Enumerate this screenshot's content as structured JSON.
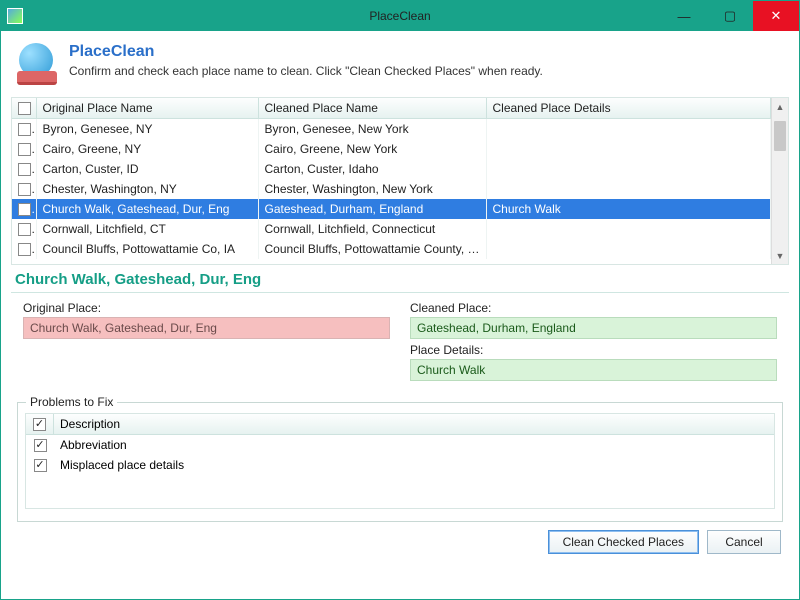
{
  "window": {
    "title": "PlaceClean",
    "controls": {
      "min": "—",
      "max": "▢",
      "close": "✕"
    }
  },
  "header": {
    "title": "PlaceClean",
    "subtitle": "Confirm and check each place name to clean. Click \"Clean Checked Places\" when ready."
  },
  "table": {
    "columns": {
      "original": "Original Place Name",
      "cleaned": "Cleaned Place Name",
      "details": "Cleaned Place Details"
    },
    "selected_index": 4,
    "rows": [
      {
        "original": "Byron, Genesee, NY",
        "cleaned": "Byron, Genesee, New York",
        "details": ""
      },
      {
        "original": "Cairo, Greene, NY",
        "cleaned": "Cairo, Greene, New York",
        "details": ""
      },
      {
        "original": "Carton, Custer, ID",
        "cleaned": "Carton, Custer, Idaho",
        "details": ""
      },
      {
        "original": "Chester, Washington, NY",
        "cleaned": "Chester, Washington, New York",
        "details": ""
      },
      {
        "original": "Church Walk, Gateshead, Dur, Eng",
        "cleaned": "Gateshead, Durham, England",
        "details": "Church Walk"
      },
      {
        "original": "Cornwall, Litchfield, CT",
        "cleaned": "Cornwall, Litchfield, Connecticut",
        "details": ""
      },
      {
        "original": "Council Bluffs, Pottowattamie Co, IA",
        "cleaned": "Council Bluffs, Pottowattamie County, Iowa",
        "details": ""
      }
    ]
  },
  "detail": {
    "title": "Church Walk, Gateshead, Dur, Eng",
    "original_label": "Original Place:",
    "original_value": "Church Walk, Gateshead, Dur, Eng",
    "cleaned_label": "Cleaned Place:",
    "cleaned_value": "Gateshead, Durham, England",
    "details_label": "Place Details:",
    "details_value": "Church Walk"
  },
  "problems": {
    "legend": "Problems to Fix",
    "header": "Description",
    "items": [
      {
        "checked": true,
        "label": "Abbreviation"
      },
      {
        "checked": true,
        "label": "Misplaced place details"
      }
    ]
  },
  "footer": {
    "clean": "Clean Checked Places",
    "cancel": "Cancel"
  },
  "colors": {
    "accent": "#18a38a",
    "selection": "#2f7de1",
    "pink_bg": "#f6bfbf",
    "green_bg": "#d9f3d9",
    "close_red": "#e81123",
    "link_blue": "#2a6fc9"
  }
}
